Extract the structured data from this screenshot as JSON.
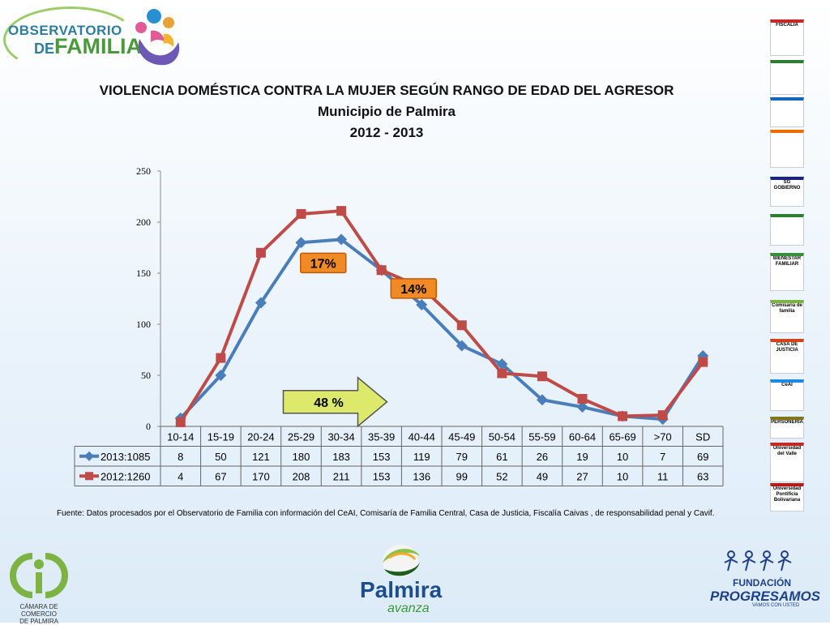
{
  "header": {
    "logo_line1": "OBSERVATORIO",
    "logo_line2a": "DE",
    "logo_line2b": "FAMILIA"
  },
  "titles": {
    "line1": "VIOLENCIA DOMÉSTICA CONTRA LA MUJER SEGÚN RANGO DE EDAD DEL AGRESOR",
    "line2": "Municipio de Palmira",
    "line3": "2012 - 2013"
  },
  "chart_data": {
    "type": "line",
    "categories": [
      "10-14",
      "15-19",
      "20-24",
      "25-29",
      "30-34",
      "35-39",
      "40-44",
      "45-49",
      "50-54",
      "55-59",
      "60-64",
      "65-69",
      ">70",
      "SD"
    ],
    "series": [
      {
        "name": "2013:1085",
        "values": [
          8,
          50,
          121,
          180,
          183,
          153,
          119,
          79,
          61,
          26,
          19,
          10,
          7,
          69
        ],
        "color": "#4a7ebb",
        "marker": "diamond"
      },
      {
        "name": "2012:1260",
        "values": [
          4,
          67,
          170,
          208,
          211,
          153,
          136,
          99,
          52,
          49,
          27,
          10,
          11,
          63
        ],
        "color": "#be4b48",
        "marker": "square"
      }
    ],
    "ylim": [
      0,
      250
    ],
    "yticks": [
      0,
      50,
      100,
      150,
      200,
      250
    ],
    "data_table": true,
    "annotations": [
      {
        "text": "17%",
        "style": "callout"
      },
      {
        "text": "14%",
        "style": "callout"
      },
      {
        "text": "48 %",
        "style": "arrow"
      }
    ]
  },
  "source_note": "Fuente: Datos procesados por el Observatorio de  Familia con información del CeAI, Comisaría de Familia Central, Casa de Justicia, Fiscalía Caivas , de responsabilidad penal y Cavif.",
  "side_logos": [
    {
      "label": "FISCALIA"
    },
    {
      "label": ""
    },
    {
      "label": ""
    },
    {
      "label": ""
    },
    {
      "label": "SG GOBIERNO"
    },
    {
      "label": ""
    },
    {
      "label": "BIENESTAR FAMILIAR"
    },
    {
      "label": "Comisaría de familia"
    },
    {
      "label": "CASA DE JUSTICIA"
    },
    {
      "label": "CeAI"
    },
    {
      "label": "PERSONERIA"
    },
    {
      "label": "Universidad del Valle"
    },
    {
      "label": "Universidad Pontificia Bolivariana"
    }
  ],
  "footer": {
    "ccp_line1": "CÁMARA DE COMERCIO",
    "ccp_line2": "DE PALMIRA",
    "palmira_word": "Palmira",
    "palmira_sub": "avanza",
    "fund_line1": "FUNDACIÓN",
    "fund_line2": "PROGRESAMOS",
    "fund_line3": "VAMOS CON USTED"
  }
}
